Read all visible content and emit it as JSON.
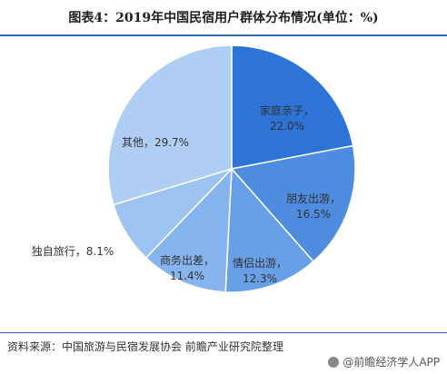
{
  "title": "图表4：2019年中国民宿用户群体分布情况(单位：%)",
  "chart_data": {
    "type": "pie",
    "categories": [
      "家庭亲子",
      "朋友出游",
      "情侣出游",
      "商务出差",
      "独自旅行",
      "其他"
    ],
    "values": [
      22.0,
      16.5,
      12.3,
      11.4,
      8.1,
      29.7
    ],
    "labels": [
      "家庭亲子，22.0%",
      "朋友出游，16.5%",
      "情侣出游，12.3%",
      "商务出差，11.4%",
      "独自旅行，8.1%",
      "其他，29.7%"
    ],
    "colors": [
      "#2e73d6",
      "#4e8cdf",
      "#68a0e8",
      "#86b4ee",
      "#9dc3f2",
      "#aecef4"
    ],
    "start": "12 o'clock",
    "direction": "clockwise"
  },
  "footer": {
    "source": "资料来源：中国旅游与民宿发展协会 前瞻产业研究院整理",
    "brand": "@前瞻经济学人APP"
  }
}
